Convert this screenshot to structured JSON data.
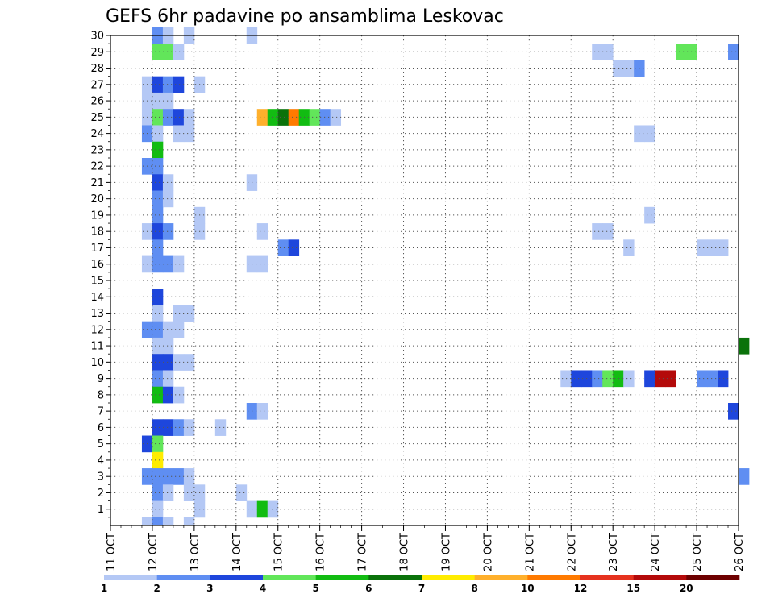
{
  "chart_data": {
    "type": "heatmap",
    "title": "GEFS 6hr padavine po ansamblima Leskovac",
    "x_ticks": [
      "11 OCT",
      "12 OCT",
      "13 OCT",
      "14 OCT",
      "15 OCT",
      "16 OCT",
      "17 OCT",
      "18 OCT",
      "19 OCT",
      "20 OCT",
      "21 OCT",
      "22 OCT",
      "23 OCT",
      "24 OCT",
      "25 OCT",
      "26 OCT"
    ],
    "y_ticks": [
      "1",
      "2",
      "3",
      "4",
      "5",
      "6",
      "7",
      "8",
      "9",
      "10",
      "11",
      "12",
      "13",
      "14",
      "15",
      "16",
      "17",
      "18",
      "19",
      "20",
      "21",
      "22",
      "23",
      "24",
      "25",
      "26",
      "27",
      "28",
      "29",
      "30"
    ],
    "x_range": [
      "11 OCT 00Z",
      "26 OCT 00Z"
    ],
    "y_range": [
      0,
      30
    ],
    "grid": true,
    "time_step_hours": 6,
    "colorbar": {
      "orientation": "horizontal",
      "placement": "bottom",
      "labels": [
        "1",
        "2",
        "3",
        "4",
        "5",
        "6",
        "7",
        "8",
        "10",
        "12",
        "15",
        "20"
      ],
      "colors": [
        "#b4c8f5",
        "#5f8ef2",
        "#1e46dc",
        "#62e65a",
        "#12bc12",
        "#0a720a",
        "#ffec00",
        "#ffb02c",
        "#ff7a00",
        "#e6321e",
        "#b40a0a",
        "#6e0000"
      ]
    },
    "cells": [
      {
        "member": 30,
        "day": 12,
        "hour": 0,
        "level": 2
      },
      {
        "member": 30,
        "day": 12,
        "hour": 6,
        "level": 1
      },
      {
        "member": 30,
        "day": 12,
        "hour": 18,
        "level": 1
      },
      {
        "member": 30,
        "day": 14,
        "hour": 6,
        "level": 1
      },
      {
        "member": 29,
        "day": 12,
        "hour": 0,
        "level": 4
      },
      {
        "member": 29,
        "day": 12,
        "hour": 6,
        "level": 4
      },
      {
        "member": 29,
        "day": 12,
        "hour": 12,
        "level": 1
      },
      {
        "member": 29,
        "day": 22,
        "hour": 12,
        "level": 1
      },
      {
        "member": 29,
        "day": 22,
        "hour": 18,
        "level": 1
      },
      {
        "member": 29,
        "day": 24,
        "hour": 12,
        "level": 4
      },
      {
        "member": 29,
        "day": 24,
        "hour": 18,
        "level": 4
      },
      {
        "member": 29,
        "day": 25,
        "hour": 18,
        "level": 2
      },
      {
        "member": 28,
        "day": 23,
        "hour": 0,
        "level": 1
      },
      {
        "member": 28,
        "day": 23,
        "hour": 6,
        "level": 1
      },
      {
        "member": 28,
        "day": 23,
        "hour": 12,
        "level": 2
      },
      {
        "member": 27,
        "day": 11,
        "hour": 18,
        "level": 1
      },
      {
        "member": 27,
        "day": 12,
        "hour": 0,
        "level": 3
      },
      {
        "member": 27,
        "day": 12,
        "hour": 6,
        "level": 2
      },
      {
        "member": 27,
        "day": 12,
        "hour": 12,
        "level": 3
      },
      {
        "member": 27,
        "day": 13,
        "hour": 0,
        "level": 1
      },
      {
        "member": 26,
        "day": 11,
        "hour": 18,
        "level": 1
      },
      {
        "member": 26,
        "day": 12,
        "hour": 0,
        "level": 1
      },
      {
        "member": 26,
        "day": 12,
        "hour": 6,
        "level": 1
      },
      {
        "member": 25,
        "day": 11,
        "hour": 18,
        "level": 1
      },
      {
        "member": 25,
        "day": 12,
        "hour": 0,
        "level": 4
      },
      {
        "member": 25,
        "day": 12,
        "hour": 6,
        "level": 2
      },
      {
        "member": 25,
        "day": 12,
        "hour": 12,
        "level": 3
      },
      {
        "member": 25,
        "day": 12,
        "hour": 18,
        "level": 1
      },
      {
        "member": 25,
        "day": 14,
        "hour": 12,
        "level": 8
      },
      {
        "member": 25,
        "day": 14,
        "hour": 18,
        "level": 5
      },
      {
        "member": 25,
        "day": 15,
        "hour": 0,
        "level": 6
      },
      {
        "member": 25,
        "day": 15,
        "hour": 6,
        "level": 9
      },
      {
        "member": 25,
        "day": 15,
        "hour": 12,
        "level": 5
      },
      {
        "member": 25,
        "day": 15,
        "hour": 18,
        "level": 4
      },
      {
        "member": 25,
        "day": 16,
        "hour": 0,
        "level": 2
      },
      {
        "member": 25,
        "day": 16,
        "hour": 6,
        "level": 1
      },
      {
        "member": 24,
        "day": 11,
        "hour": 18,
        "level": 2
      },
      {
        "member": 24,
        "day": 12,
        "hour": 0,
        "level": 1
      },
      {
        "member": 24,
        "day": 12,
        "hour": 12,
        "level": 1
      },
      {
        "member": 24,
        "day": 12,
        "hour": 18,
        "level": 1
      },
      {
        "member": 24,
        "day": 23,
        "hour": 12,
        "level": 1
      },
      {
        "member": 24,
        "day": 23,
        "hour": 18,
        "level": 1
      },
      {
        "member": 23,
        "day": 12,
        "hour": 0,
        "level": 5
      },
      {
        "member": 22,
        "day": 11,
        "hour": 18,
        "level": 2
      },
      {
        "member": 22,
        "day": 12,
        "hour": 0,
        "level": 2
      },
      {
        "member": 21,
        "day": 12,
        "hour": 0,
        "level": 3
      },
      {
        "member": 21,
        "day": 12,
        "hour": 6,
        "level": 1
      },
      {
        "member": 21,
        "day": 14,
        "hour": 6,
        "level": 1
      },
      {
        "member": 20,
        "day": 12,
        "hour": 0,
        "level": 2
      },
      {
        "member": 20,
        "day": 12,
        "hour": 6,
        "level": 1
      },
      {
        "member": 19,
        "day": 12,
        "hour": 0,
        "level": 2
      },
      {
        "member": 19,
        "day": 13,
        "hour": 0,
        "level": 1
      },
      {
        "member": 19,
        "day": 23,
        "hour": 18,
        "level": 1
      },
      {
        "member": 18,
        "day": 11,
        "hour": 18,
        "level": 1
      },
      {
        "member": 18,
        "day": 12,
        "hour": 0,
        "level": 3
      },
      {
        "member": 18,
        "day": 12,
        "hour": 6,
        "level": 2
      },
      {
        "member": 18,
        "day": 13,
        "hour": 0,
        "level": 1
      },
      {
        "member": 18,
        "day": 14,
        "hour": 12,
        "level": 1
      },
      {
        "member": 18,
        "day": 22,
        "hour": 12,
        "level": 1
      },
      {
        "member": 18,
        "day": 22,
        "hour": 18,
        "level": 1
      },
      {
        "member": 17,
        "day": 12,
        "hour": 0,
        "level": 2
      },
      {
        "member": 17,
        "day": 15,
        "hour": 0,
        "level": 2
      },
      {
        "member": 17,
        "day": 15,
        "hour": 6,
        "level": 3
      },
      {
        "member": 17,
        "day": 23,
        "hour": 6,
        "level": 1
      },
      {
        "member": 17,
        "day": 25,
        "hour": 0,
        "level": 1
      },
      {
        "member": 17,
        "day": 25,
        "hour": 6,
        "level": 1
      },
      {
        "member": 17,
        "day": 25,
        "hour": 12,
        "level": 1
      },
      {
        "member": 16,
        "day": 11,
        "hour": 18,
        "level": 1
      },
      {
        "member": 16,
        "day": 12,
        "hour": 0,
        "level": 2
      },
      {
        "member": 16,
        "day": 12,
        "hour": 6,
        "level": 2
      },
      {
        "member": 16,
        "day": 12,
        "hour": 12,
        "level": 1
      },
      {
        "member": 16,
        "day": 14,
        "hour": 6,
        "level": 1
      },
      {
        "member": 16,
        "day": 14,
        "hour": 12,
        "level": 1
      },
      {
        "member": 14,
        "day": 12,
        "hour": 0,
        "level": 3
      },
      {
        "member": 13,
        "day": 12,
        "hour": 0,
        "level": 1
      },
      {
        "member": 13,
        "day": 12,
        "hour": 12,
        "level": 1
      },
      {
        "member": 13,
        "day": 12,
        "hour": 18,
        "level": 1
      },
      {
        "member": 12,
        "day": 11,
        "hour": 18,
        "level": 2
      },
      {
        "member": 12,
        "day": 12,
        "hour": 0,
        "level": 2
      },
      {
        "member": 12,
        "day": 12,
        "hour": 6,
        "level": 1
      },
      {
        "member": 12,
        "day": 12,
        "hour": 12,
        "level": 1
      },
      {
        "member": 11,
        "day": 12,
        "hour": 0,
        "level": 1
      },
      {
        "member": 11,
        "day": 12,
        "hour": 6,
        "level": 1
      },
      {
        "member": 11,
        "day": 26,
        "hour": 0,
        "level": 6
      },
      {
        "member": 10,
        "day": 12,
        "hour": 0,
        "level": 3
      },
      {
        "member": 10,
        "day": 12,
        "hour": 6,
        "level": 3
      },
      {
        "member": 10,
        "day": 12,
        "hour": 12,
        "level": 1
      },
      {
        "member": 10,
        "day": 12,
        "hour": 18,
        "level": 1
      },
      {
        "member": 9,
        "day": 12,
        "hour": 0,
        "level": 2
      },
      {
        "member": 9,
        "day": 12,
        "hour": 6,
        "level": 1
      },
      {
        "member": 9,
        "day": 21,
        "hour": 18,
        "level": 1
      },
      {
        "member": 9,
        "day": 22,
        "hour": 0,
        "level": 3
      },
      {
        "member": 9,
        "day": 22,
        "hour": 6,
        "level": 3
      },
      {
        "member": 9,
        "day": 22,
        "hour": 12,
        "level": 2
      },
      {
        "member": 9,
        "day": 22,
        "hour": 18,
        "level": 4
      },
      {
        "member": 9,
        "day": 23,
        "hour": 0,
        "level": 5
      },
      {
        "member": 9,
        "day": 23,
        "hour": 6,
        "level": 1
      },
      {
        "member": 9,
        "day": 23,
        "hour": 18,
        "level": 3
      },
      {
        "member": 9,
        "day": 24,
        "hour": 0,
        "level": 11
      },
      {
        "member": 9,
        "day": 24,
        "hour": 6,
        "level": 11
      },
      {
        "member": 9,
        "day": 25,
        "hour": 0,
        "level": 2
      },
      {
        "member": 9,
        "day": 25,
        "hour": 6,
        "level": 2
      },
      {
        "member": 9,
        "day": 25,
        "hour": 12,
        "level": 3
      },
      {
        "member": 8,
        "day": 12,
        "hour": 0,
        "level": 5
      },
      {
        "member": 8,
        "day": 12,
        "hour": 6,
        "level": 3
      },
      {
        "member": 8,
        "day": 12,
        "hour": 12,
        "level": 1
      },
      {
        "member": 7,
        "day": 14,
        "hour": 6,
        "level": 2
      },
      {
        "member": 7,
        "day": 14,
        "hour": 12,
        "level": 1
      },
      {
        "member": 7,
        "day": 25,
        "hour": 18,
        "level": 3
      },
      {
        "member": 6,
        "day": 12,
        "hour": 0,
        "level": 3
      },
      {
        "member": 6,
        "day": 12,
        "hour": 6,
        "level": 3
      },
      {
        "member": 6,
        "day": 12,
        "hour": 12,
        "level": 2
      },
      {
        "member": 6,
        "day": 12,
        "hour": 18,
        "level": 1
      },
      {
        "member": 6,
        "day": 13,
        "hour": 12,
        "level": 1
      },
      {
        "member": 5,
        "day": 11,
        "hour": 18,
        "level": 3
      },
      {
        "member": 5,
        "day": 12,
        "hour": 0,
        "level": 4
      },
      {
        "member": 4,
        "day": 12,
        "hour": 0,
        "level": 7
      },
      {
        "member": 3,
        "day": 11,
        "hour": 18,
        "level": 2
      },
      {
        "member": 3,
        "day": 12,
        "hour": 0,
        "level": 2
      },
      {
        "member": 3,
        "day": 12,
        "hour": 6,
        "level": 2
      },
      {
        "member": 3,
        "day": 12,
        "hour": 12,
        "level": 2
      },
      {
        "member": 3,
        "day": 12,
        "hour": 18,
        "level": 1
      },
      {
        "member": 3,
        "day": 26,
        "hour": 0,
        "level": 2
      },
      {
        "member": 2,
        "day": 12,
        "hour": 0,
        "level": 2
      },
      {
        "member": 2,
        "day": 12,
        "hour": 6,
        "level": 1
      },
      {
        "member": 2,
        "day": 12,
        "hour": 18,
        "level": 1
      },
      {
        "member": 2,
        "day": 13,
        "hour": 0,
        "level": 1
      },
      {
        "member": 2,
        "day": 14,
        "hour": 0,
        "level": 1
      },
      {
        "member": 1,
        "day": 12,
        "hour": 0,
        "level": 1
      },
      {
        "member": 1,
        "day": 13,
        "hour": 0,
        "level": 1
      },
      {
        "member": 1,
        "day": 14,
        "hour": 6,
        "level": 1
      },
      {
        "member": 1,
        "day": 14,
        "hour": 12,
        "level": 5
      },
      {
        "member": 1,
        "day": 14,
        "hour": 18,
        "level": 1
      },
      {
        "member": 0,
        "day": 11,
        "hour": 18,
        "level": 1
      },
      {
        "member": 0,
        "day": 12,
        "hour": 0,
        "level": 2
      },
      {
        "member": 0,
        "day": 12,
        "hour": 6,
        "level": 1
      },
      {
        "member": 0,
        "day": 12,
        "hour": 18,
        "level": 1
      }
    ]
  }
}
